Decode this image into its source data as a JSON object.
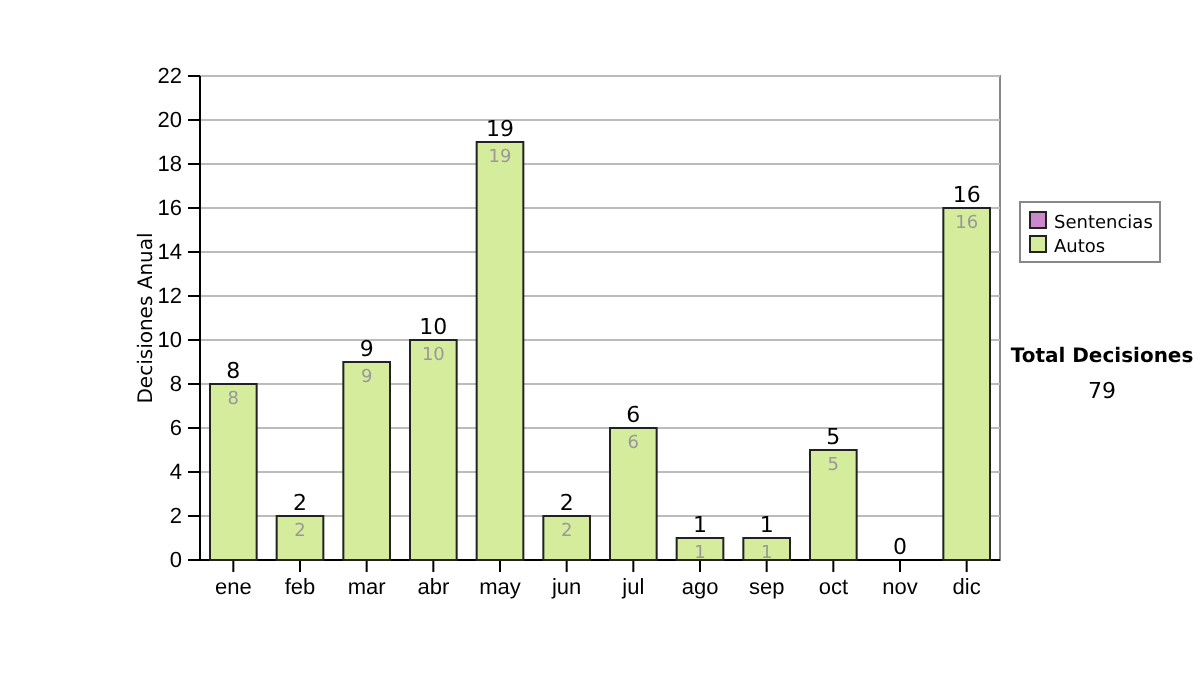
{
  "chart_data": {
    "type": "bar",
    "ylabel": "Decisiones Anual",
    "categories": [
      "ene",
      "feb",
      "mar",
      "abr",
      "may",
      "jun",
      "jul",
      "ago",
      "sep",
      "oct",
      "nov",
      "dic"
    ],
    "series": [
      {
        "name": "Sentencias",
        "color": "#cc88cc",
        "values": [
          0,
          0,
          0,
          0,
          0,
          0,
          0,
          0,
          0,
          0,
          0,
          0
        ]
      },
      {
        "name": "Autos",
        "color": "#d4ec9c",
        "values": [
          8,
          2,
          9,
          10,
          19,
          2,
          6,
          1,
          1,
          5,
          0,
          16
        ],
        "value_labels": [
          "8",
          "2",
          "9",
          "10",
          "19",
          "2",
          "6",
          "1",
          "1",
          "5",
          null,
          "16"
        ]
      }
    ],
    "stacked": true,
    "totals": [
      "8",
      "2",
      "9",
      "10",
      "19",
      "2",
      "6",
      "1",
      "1",
      "5",
      "0",
      "16"
    ],
    "ylim": [
      0,
      22
    ],
    "yticks": [
      0,
      2,
      4,
      6,
      8,
      10,
      12,
      14,
      16,
      18,
      20,
      22
    ],
    "grid": "y",
    "legend": "right",
    "annotations": [
      "Total Decisiones",
      "79"
    ]
  }
}
